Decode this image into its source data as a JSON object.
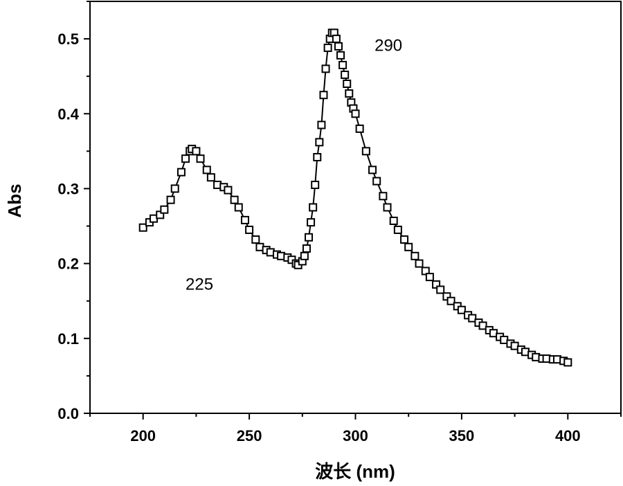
{
  "chart_data": {
    "type": "line",
    "title": "",
    "xlabel": "波长 (nm)",
    "ylabel": "Abs",
    "xlim": [
      175,
      425
    ],
    "ylim": [
      0,
      0.55
    ],
    "xticks": [
      200,
      250,
      300,
      350,
      400
    ],
    "xtick_labels": [
      "200",
      "250",
      "300",
      "350",
      "400"
    ],
    "yticks": [
      0.0,
      0.1,
      0.2,
      0.3,
      0.4,
      0.5
    ],
    "ytick_labels": [
      "0.0",
      "0.1",
      "0.2",
      "0.3",
      "0.4",
      "0.5"
    ],
    "grid": false,
    "marker": "open-square",
    "line_color": "#000000",
    "series": [
      {
        "x": [
          200,
          203,
          205,
          208,
          210,
          213,
          215,
          218,
          220,
          222,
          223,
          225,
          227,
          230,
          232,
          235,
          238,
          240,
          243,
          245,
          248,
          250,
          253,
          255,
          258,
          260,
          263,
          265,
          268,
          270,
          272,
          273,
          275,
          276,
          277,
          278,
          279,
          280,
          281,
          282,
          283,
          284,
          285,
          286,
          287,
          288,
          289,
          290,
          291,
          292,
          293,
          294,
          295,
          296,
          297,
          298,
          299,
          300,
          302,
          305,
          308,
          310,
          313,
          315,
          318,
          320,
          323,
          325,
          328,
          330,
          333,
          335,
          338,
          340,
          343,
          345,
          348,
          350,
          353,
          355,
          358,
          360,
          363,
          365,
          368,
          370,
          373,
          375,
          378,
          380,
          383,
          385,
          388,
          390,
          393,
          395,
          398,
          400
        ],
        "y": [
          0.248,
          0.255,
          0.26,
          0.265,
          0.272,
          0.285,
          0.3,
          0.322,
          0.34,
          0.35,
          0.353,
          0.35,
          0.34,
          0.325,
          0.315,
          0.305,
          0.302,
          0.298,
          0.285,
          0.275,
          0.258,
          0.245,
          0.232,
          0.222,
          0.218,
          0.215,
          0.212,
          0.21,
          0.208,
          0.205,
          0.2,
          0.198,
          0.203,
          0.21,
          0.22,
          0.235,
          0.255,
          0.275,
          0.305,
          0.342,
          0.362,
          0.385,
          0.425,
          0.46,
          0.488,
          0.5,
          0.508,
          0.508,
          0.5,
          0.49,
          0.478,
          0.465,
          0.452,
          0.44,
          0.427,
          0.415,
          0.407,
          0.4,
          0.38,
          0.35,
          0.325,
          0.31,
          0.29,
          0.275,
          0.257,
          0.245,
          0.232,
          0.222,
          0.21,
          0.2,
          0.19,
          0.182,
          0.172,
          0.165,
          0.156,
          0.15,
          0.143,
          0.138,
          0.131,
          0.127,
          0.121,
          0.117,
          0.111,
          0.107,
          0.102,
          0.098,
          0.093,
          0.09,
          0.085,
          0.082,
          0.078,
          0.075,
          0.073,
          0.073,
          0.072,
          0.072,
          0.07,
          0.068
        ]
      }
    ],
    "annotations": [
      {
        "text": "290",
        "x": 309,
        "y": 0.484
      },
      {
        "text": "225",
        "x": 220,
        "y": 0.165
      }
    ]
  }
}
